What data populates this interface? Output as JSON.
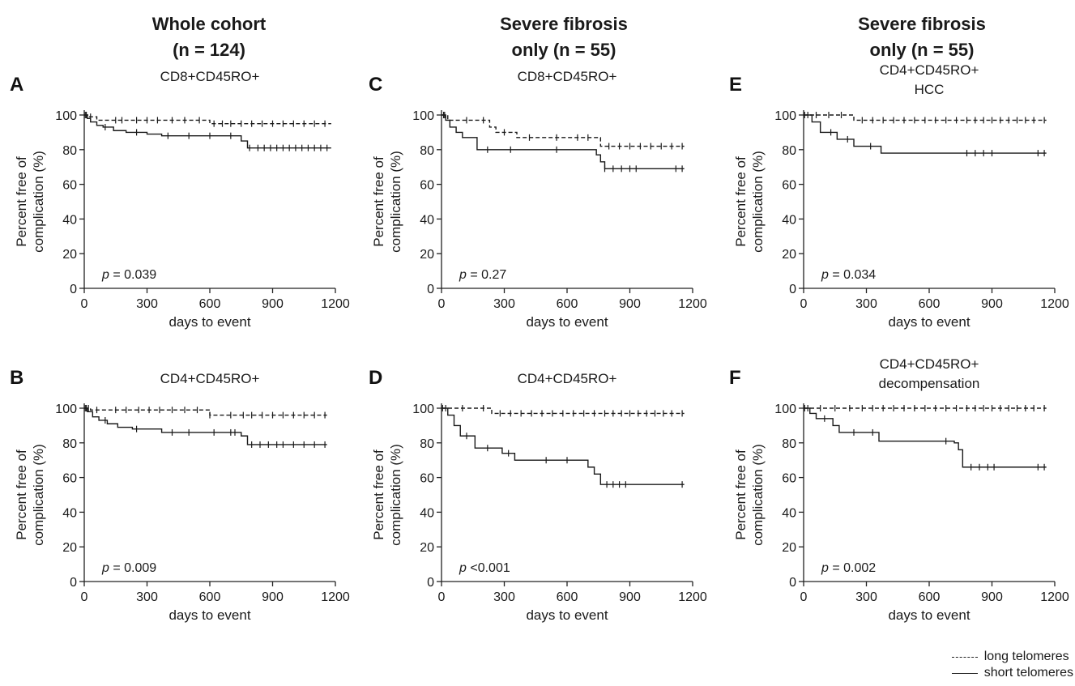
{
  "column_headers": [
    {
      "line1": "Whole cohort",
      "line2": "(n = 124)"
    },
    {
      "line1": "Severe fibrosis",
      "line2": "only (n = 55)"
    },
    {
      "line1": "Severe fibrosis",
      "line2": "only (n = 55)"
    }
  ],
  "legend": {
    "long_label": "long telomeres",
    "short_label": "short telomeres"
  },
  "chart_data": [
    {
      "panel": "A",
      "type": "line",
      "step": true,
      "title_lines": [
        "CD8+CD45RO+"
      ],
      "xlabel": "days to event",
      "ylabel_lines": [
        "Percent free of",
        "complication (%)"
      ],
      "xlim": [
        0,
        1200
      ],
      "ylim": [
        0,
        100
      ],
      "xticks": [
        0,
        300,
        600,
        900,
        1200
      ],
      "yticks": [
        0,
        20,
        40,
        60,
        80,
        100
      ],
      "p_prefix": "p",
      "p_text": " = 0.039",
      "series": [
        {
          "name": "long telomeres",
          "style": "dashed",
          "x": [
            0,
            20,
            60,
            600,
            1180
          ],
          "y": [
            100,
            99,
            97,
            95,
            95
          ],
          "censor_x": [
            10,
            30,
            150,
            180,
            250,
            300,
            350,
            420,
            480,
            550,
            620,
            660,
            700,
            750,
            800,
            850,
            900,
            950,
            1000,
            1050,
            1100,
            1150
          ]
        },
        {
          "name": "short telomeres",
          "style": "solid",
          "x": [
            0,
            15,
            30,
            60,
            90,
            140,
            200,
            300,
            370,
            750,
            780,
            1180
          ],
          "y": [
            100,
            98,
            96,
            94,
            93,
            91,
            90,
            89,
            88,
            85,
            81,
            81
          ],
          "censor_x": [
            5,
            100,
            250,
            400,
            500,
            600,
            700,
            790,
            830,
            860,
            890,
            920,
            950,
            980,
            1010,
            1040,
            1070,
            1100,
            1130,
            1160
          ]
        }
      ]
    },
    {
      "panel": "B",
      "type": "line",
      "step": true,
      "title_lines": [
        "CD4+CD45RO+"
      ],
      "xlabel": "days to event",
      "ylabel_lines": [
        "Percent free of",
        "complication (%)"
      ],
      "xlim": [
        0,
        1200
      ],
      "ylim": [
        0,
        100
      ],
      "xticks": [
        0,
        300,
        600,
        900,
        1200
      ],
      "yticks": [
        0,
        20,
        40,
        60,
        80,
        100
      ],
      "p_prefix": "p",
      "p_text": " = 0.009",
      "series": [
        {
          "name": "long telomeres",
          "style": "dashed",
          "x": [
            0,
            30,
            600,
            1160
          ],
          "y": [
            100,
            99,
            96,
            96
          ],
          "censor_x": [
            10,
            20,
            60,
            150,
            200,
            260,
            310,
            360,
            420,
            480,
            540,
            600,
            700,
            760,
            800,
            850,
            900,
            950,
            1000,
            1050,
            1100,
            1150
          ]
        },
        {
          "name": "short telomeres",
          "style": "solid",
          "x": [
            0,
            15,
            40,
            70,
            110,
            160,
            230,
            370,
            750,
            780,
            1160
          ],
          "y": [
            100,
            98,
            95,
            93,
            91,
            89,
            88,
            86,
            84,
            79,
            79
          ],
          "censor_x": [
            5,
            100,
            250,
            420,
            500,
            620,
            700,
            720,
            800,
            840,
            880,
            920,
            950,
            1000,
            1050,
            1100,
            1150
          ]
        }
      ]
    },
    {
      "panel": "C",
      "type": "line",
      "step": true,
      "title_lines": [
        "CD8+CD45RO+"
      ],
      "xlabel": "days to event",
      "ylabel_lines": [
        "Percent free of",
        "complication (%)"
      ],
      "xlim": [
        0,
        1200
      ],
      "ylim": [
        0,
        100
      ],
      "xticks": [
        0,
        300,
        600,
        900,
        1200
      ],
      "yticks": [
        0,
        20,
        40,
        60,
        80,
        100
      ],
      "p_prefix": "p",
      "p_text": " = 0.27",
      "series": [
        {
          "name": "long telomeres",
          "style": "dashed",
          "x": [
            0,
            30,
            230,
            260,
            360,
            760,
            1160
          ],
          "y": [
            100,
            97,
            93,
            90,
            87,
            82,
            82
          ],
          "censor_x": [
            15,
            120,
            200,
            300,
            420,
            550,
            650,
            700,
            800,
            850,
            900,
            950,
            1000,
            1050,
            1100,
            1150
          ]
        },
        {
          "name": "short telomeres",
          "style": "solid",
          "x": [
            0,
            20,
            40,
            70,
            100,
            170,
            740,
            760,
            780,
            1160
          ],
          "y": [
            100,
            97,
            93,
            90,
            87,
            80,
            77,
            73,
            69,
            69
          ],
          "censor_x": [
            10,
            220,
            330,
            550,
            780,
            820,
            860,
            900,
            930,
            1120,
            1150
          ]
        }
      ]
    },
    {
      "panel": "D",
      "type": "line",
      "step": true,
      "title_lines": [
        "CD4+CD45RO+"
      ],
      "xlabel": "days to event",
      "ylabel_lines": [
        "Percent free of",
        "complication (%)"
      ],
      "xlim": [
        0,
        1200
      ],
      "ylim": [
        0,
        100
      ],
      "xticks": [
        0,
        300,
        600,
        900,
        1200
      ],
      "yticks": [
        0,
        20,
        40,
        60,
        80,
        100
      ],
      "p_prefix": "p",
      "p_text": " <0.001",
      "series": [
        {
          "name": "long telomeres",
          "style": "dashed",
          "x": [
            0,
            240,
            1160
          ],
          "y": [
            100,
            97,
            97
          ],
          "censor_x": [
            20,
            100,
            200,
            280,
            330,
            380,
            430,
            480,
            530,
            580,
            630,
            680,
            730,
            780,
            820,
            860,
            900,
            940,
            980,
            1020,
            1060,
            1100,
            1150
          ]
        },
        {
          "name": "short telomeres",
          "style": "solid",
          "x": [
            0,
            30,
            60,
            90,
            160,
            290,
            350,
            700,
            730,
            760,
            1160
          ],
          "y": [
            100,
            96,
            90,
            84,
            77,
            74,
            70,
            66,
            62,
            56,
            56
          ],
          "censor_x": [
            5,
            120,
            220,
            320,
            500,
            600,
            790,
            820,
            850,
            880,
            1150
          ]
        }
      ]
    },
    {
      "panel": "E",
      "type": "line",
      "step": true,
      "title_lines": [
        "CD4+CD45RO+",
        "HCC"
      ],
      "xlabel": "days to event",
      "ylabel_lines": [
        "Percent free of",
        "complication (%)"
      ],
      "xlim": [
        0,
        1200
      ],
      "ylim": [
        0,
        100
      ],
      "xticks": [
        0,
        300,
        600,
        900,
        1200
      ],
      "yticks": [
        0,
        20,
        40,
        60,
        80,
        100
      ],
      "p_prefix": "p",
      "p_text": " = 0.034",
      "series": [
        {
          "name": "long telomeres",
          "style": "dashed",
          "x": [
            0,
            240,
            1160
          ],
          "y": [
            100,
            97,
            97
          ],
          "censor_x": [
            20,
            60,
            120,
            180,
            280,
            330,
            380,
            430,
            480,
            530,
            580,
            630,
            680,
            730,
            780,
            820,
            860,
            900,
            940,
            980,
            1020,
            1060,
            1100,
            1150
          ]
        },
        {
          "name": "short telomeres",
          "style": "solid",
          "x": [
            0,
            40,
            80,
            160,
            240,
            370,
            1160
          ],
          "y": [
            100,
            96,
            90,
            86,
            82,
            78,
            78
          ],
          "censor_x": [
            5,
            130,
            210,
            320,
            780,
            820,
            860,
            900,
            1120,
            1150
          ]
        }
      ]
    },
    {
      "panel": "F",
      "type": "line",
      "step": true,
      "title_lines": [
        "CD4+CD45RO+",
        "decompensation"
      ],
      "xlabel": "days to event",
      "ylabel_lines": [
        "Percent free of",
        "complication (%)"
      ],
      "xlim": [
        0,
        1200
      ],
      "ylim": [
        0,
        100
      ],
      "xticks": [
        0,
        300,
        600,
        900,
        1200
      ],
      "yticks": [
        0,
        20,
        40,
        60,
        80,
        100
      ],
      "p_prefix": "p",
      "p_text": " = 0.002",
      "series": [
        {
          "name": "long telomeres",
          "style": "dashed",
          "x": [
            0,
            1160
          ],
          "y": [
            100,
            100
          ],
          "censor_x": [
            20,
            80,
            150,
            220,
            280,
            330,
            380,
            430,
            480,
            530,
            580,
            630,
            680,
            730,
            780,
            820,
            860,
            900,
            940,
            980,
            1020,
            1060,
            1100,
            1150
          ]
        },
        {
          "name": "short telomeres",
          "style": "solid",
          "x": [
            0,
            30,
            60,
            140,
            170,
            360,
            720,
            740,
            760,
            1160
          ],
          "y": [
            100,
            97,
            94,
            90,
            86,
            81,
            80,
            76,
            66,
            66
          ],
          "censor_x": [
            5,
            100,
            240,
            330,
            680,
            800,
            840,
            880,
            910,
            1120,
            1150
          ]
        }
      ]
    }
  ]
}
